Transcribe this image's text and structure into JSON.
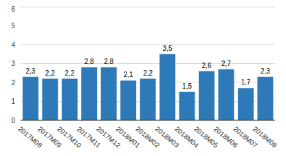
{
  "chart_data": {
    "type": "bar",
    "categories": [
      "2017M08",
      "2017M09",
      "2017M10",
      "2017M11",
      "2017M12",
      "2018M01",
      "2018M02",
      "2018M03",
      "2018M04",
      "2018M05",
      "2018M06",
      "2018M07",
      "2018M08"
    ],
    "values": [
      2.3,
      2.2,
      2.2,
      2.8,
      2.8,
      2.1,
      2.2,
      3.5,
      1.5,
      2.6,
      2.7,
      1.7,
      2.3
    ],
    "value_labels": [
      "2,3",
      "2,2",
      "2,2",
      "2,8",
      "2,8",
      "2,1",
      "2,2",
      "3,5",
      "1,5",
      "2,6",
      "2,7",
      "1,7",
      "2,3"
    ],
    "color": "#2e7ab8",
    "ylim": [
      0,
      6
    ],
    "yticks": [
      0,
      1,
      2,
      3,
      4,
      5,
      6
    ],
    "grid": true,
    "data_labels": true
  }
}
